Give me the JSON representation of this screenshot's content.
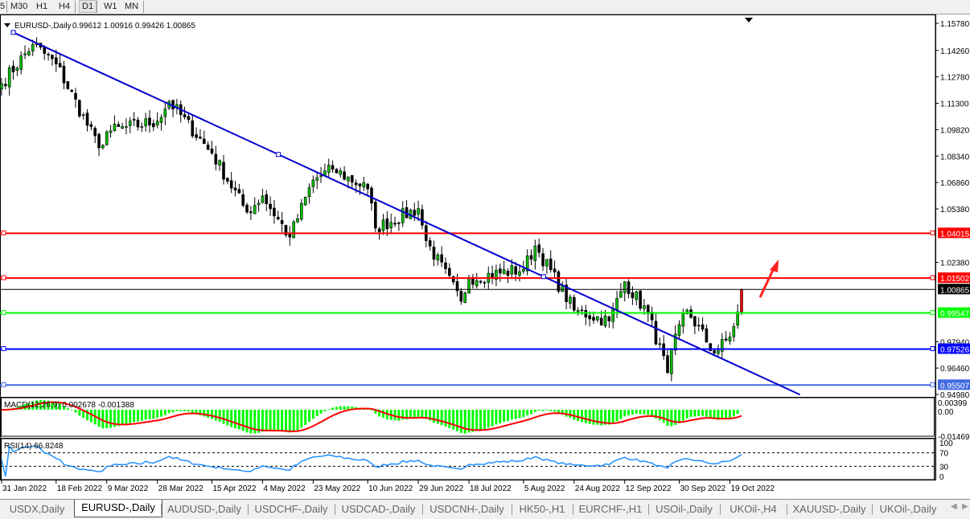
{
  "toolbar": {
    "timeframes": [
      "5",
      "M30",
      "H1",
      "H4",
      "D1",
      "W1",
      "MN"
    ],
    "active": "D1"
  },
  "header": {
    "symbol": "EURUSD-,Daily",
    "ohlc": "0.99612 1.00916 0.99426 1.00865"
  },
  "price_axis": {
    "ticks": [
      "1.15780",
      "1.14260",
      "1.12780",
      "1.11300",
      "1.09820",
      "1.08340",
      "1.06860",
      "1.05380",
      "1.02380",
      "0.97940",
      "0.96460",
      "0.94980"
    ]
  },
  "levels": [
    {
      "price": 1.04015,
      "label": "1.04015",
      "color": "#ff0000"
    },
    {
      "price": 1.01502,
      "label": "1.01502",
      "color": "#ff0000"
    },
    {
      "price": 1.00865,
      "label": "1.00865",
      "color": "#000000"
    },
    {
      "price": 0.99547,
      "label": "0.99547",
      "color": "#00ff00"
    },
    {
      "price": 0.97526,
      "label": "0.97526",
      "color": "#0000ff"
    },
    {
      "price": 0.95507,
      "label": "0.95507",
      "color": "#4169e1"
    }
  ],
  "trendline": {
    "color": "#0000cd",
    "from": [
      "2022-02-03",
      1.1527
    ],
    "to": [
      "2022-11-14",
      0.9497
    ]
  },
  "macd": {
    "label": "MACD(12,26,9) 0.002678 -0.001388",
    "ticks": [
      "0.00399",
      "0.00",
      "-0.014693"
    ],
    "hist_color": "#00ff00",
    "signal_color": "#ff0000"
  },
  "rsi": {
    "label": "RSI(14) 66.8248",
    "ticks": [
      "100",
      "70",
      "30",
      "0"
    ],
    "color": "#1e90ff"
  },
  "chart_data": {
    "type": "candlestick",
    "y_range": [
      0.9498,
      1.1578
    ],
    "time_labels": [
      "31 Jan 2022",
      "18 Feb 2022",
      "9 Mar 2022",
      "28 Mar 2022",
      "15 Apr 2022",
      "4 May 2022",
      "23 May 2022",
      "10 Jun 2022",
      "29 Jun 2022",
      "18 Jul 2022",
      "5 Aug 2022",
      "24 Aug 2022",
      "12 Sep 2022",
      "30 Sep 2022",
      "19 Oct 2022"
    ],
    "approx_closes": [
      [
        "2022-01-31",
        1.124
      ],
      [
        "2022-02-10",
        1.146
      ],
      [
        "2022-02-18",
        1.135
      ],
      [
        "2022-03-07",
        1.088
      ],
      [
        "2022-03-09",
        1.097
      ],
      [
        "2022-03-28",
        1.103
      ],
      [
        "2022-03-31",
        1.114
      ],
      [
        "2022-04-15",
        1.085
      ],
      [
        "2022-04-28",
        1.052
      ],
      [
        "2022-05-04",
        1.061
      ],
      [
        "2022-05-13",
        1.038
      ],
      [
        "2022-05-23",
        1.07
      ],
      [
        "2022-05-30",
        1.076
      ],
      [
        "2022-06-10",
        1.065
      ],
      [
        "2022-06-14",
        1.043
      ],
      [
        "2022-06-29",
        1.054
      ],
      [
        "2022-07-01",
        1.036
      ],
      [
        "2022-07-14",
        1.002
      ],
      [
        "2022-07-18",
        1.015
      ],
      [
        "2022-08-05",
        1.02
      ],
      [
        "2022-08-10",
        1.033
      ],
      [
        "2022-08-24",
        0.997
      ],
      [
        "2022-09-06",
        0.991
      ],
      [
        "2022-09-12",
        1.013
      ],
      [
        "2022-09-20",
        0.995
      ],
      [
        "2022-09-27",
        0.962
      ],
      [
        "2022-09-30",
        0.989
      ],
      [
        "2022-10-04",
        0.997
      ],
      [
        "2022-10-13",
        0.973
      ],
      [
        "2022-10-19",
        0.982
      ],
      [
        "2022-10-21",
        0.9961
      ],
      [
        "2022-10-24",
        1.00865
      ]
    ],
    "up_color": "#00c000",
    "down_color": "#000000"
  },
  "tabs": [
    "USDX,Daily",
    "EURUSD-,Daily",
    "AUDUSD-,Daily",
    "USDCHF-,Daily",
    "USDCAD-,Daily",
    "USDCNH-,Daily",
    "HK50-,H1",
    "EURCHF-,H1",
    "USOil-,Daily",
    "UKOil-,H4",
    "XAUUSD-,Daily",
    "UKOil-,Daily"
  ],
  "active_tab": "EURUSD-,Daily"
}
